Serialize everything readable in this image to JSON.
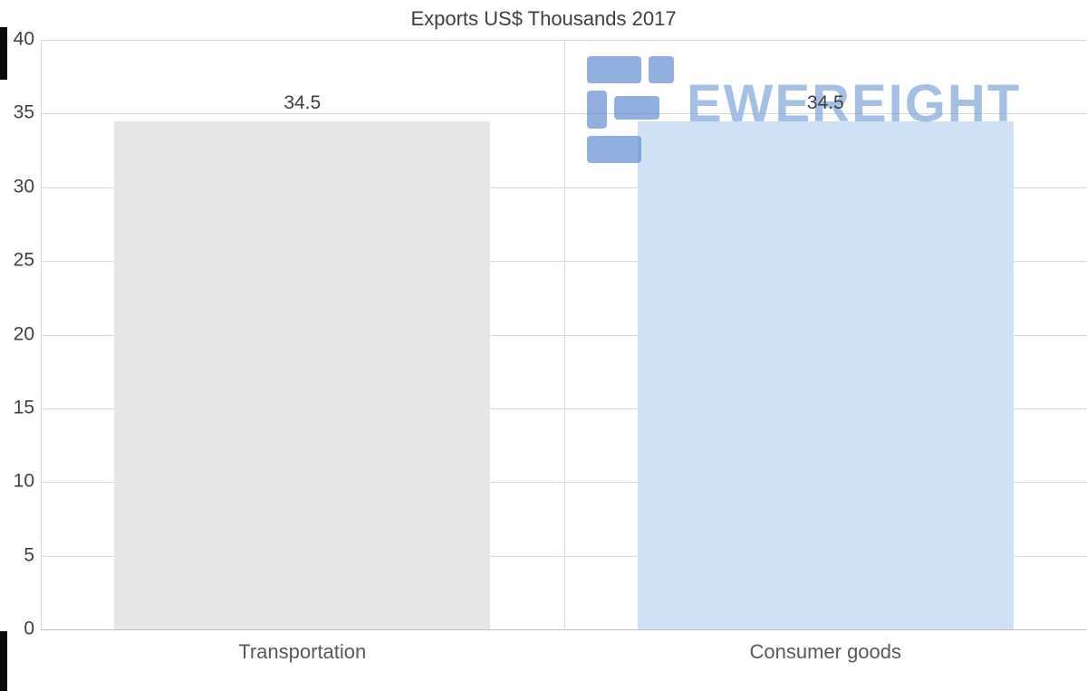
{
  "title": "Exports US$ Thousands 2017",
  "watermark": {
    "text": "EWEREIGHT",
    "color": "#6f9bd6",
    "icon": "freight-logo-icon"
  },
  "chart_data": {
    "type": "bar",
    "title": "Exports US$ Thousands 2017",
    "categories": [
      "Transportation",
      "Consumer goods"
    ],
    "values": [
      34.5,
      34.5
    ],
    "value_labels": [
      "34.5",
      "34.5"
    ],
    "bar_colors": [
      "#e6e6e6",
      "#cfe2f5"
    ],
    "xlabel": "",
    "ylabel": "",
    "ylim": [
      0,
      40
    ],
    "yticks": [
      0,
      5,
      10,
      15,
      20,
      25,
      30,
      35,
      40
    ],
    "grid": true,
    "legend": false
  }
}
